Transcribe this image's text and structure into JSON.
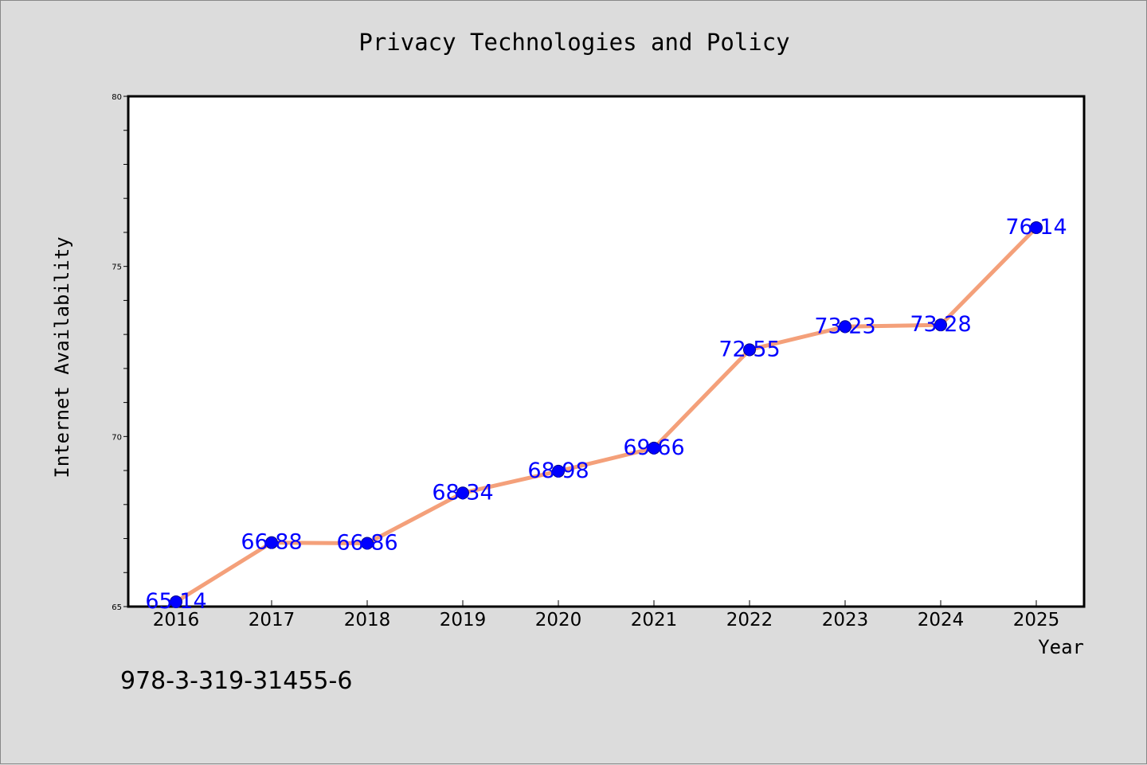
{
  "chart_data": {
    "type": "line",
    "title": "Privacy Technologies and Policy",
    "xlabel": "Year",
    "ylabel": "Internet Availability",
    "categories": [
      "2016",
      "2017",
      "2018",
      "2019",
      "2020",
      "2021",
      "2022",
      "2023",
      "2024",
      "2025"
    ],
    "series": [
      {
        "values": [
          65.14,
          66.88,
          66.86,
          68.34,
          68.98,
          69.66,
          72.55,
          73.23,
          73.28,
          76.14
        ],
        "labels": [
          "65.14",
          "66.88",
          "66.86",
          "68.34",
          "68.98",
          "69.66",
          "72.55",
          "73.23",
          "73.28",
          "76.14"
        ],
        "line_color": "#f4a07a",
        "marker_color": "#0000ff",
        "label_color": "#0000ff"
      }
    ],
    "ylim": [
      65,
      80
    ],
    "yticks": [
      "65",
      "70",
      "75",
      "80"
    ],
    "grid": false,
    "legend": "none"
  },
  "footer": {
    "code": "978-3-319-31455-6"
  }
}
